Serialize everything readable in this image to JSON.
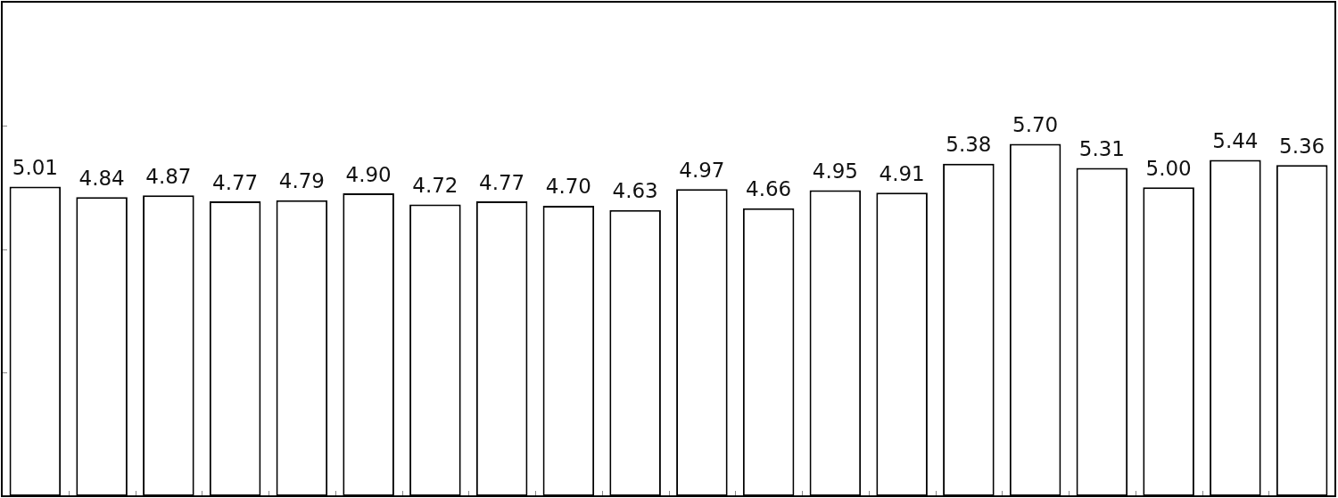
{
  "chart_data": {
    "type": "bar",
    "categories": [
      null,
      null,
      null,
      null,
      null,
      null,
      null,
      null,
      null,
      null,
      null,
      null,
      null,
      null,
      null,
      null,
      null,
      null,
      null,
      null
    ],
    "values": [
      5.01,
      4.84,
      4.87,
      4.77,
      4.79,
      4.9,
      4.72,
      4.77,
      4.7,
      4.63,
      4.97,
      4.66,
      4.95,
      4.91,
      5.38,
      5.7,
      5.31,
      5.0,
      5.44,
      5.36
    ],
    "value_labels": [
      "5.01",
      "4.84",
      "4.87",
      "4.77",
      "4.79",
      "4.90",
      "4.72",
      "4.77",
      "4.70",
      "4.63",
      "4.97",
      "4.66",
      "4.95",
      "4.91",
      "5.38",
      "5.70",
      "5.31",
      "5.00",
      "5.44",
      "5.36"
    ],
    "color": "#ffffff",
    "ylim": [
      0,
      8
    ],
    "yticks": [
      {
        "value": 0,
        "label": null
      },
      {
        "value": 2,
        "label": null
      },
      {
        "value": 4,
        "label": null
      },
      {
        "value": 6,
        "label": null
      }
    ],
    "tick_labels": false
  }
}
